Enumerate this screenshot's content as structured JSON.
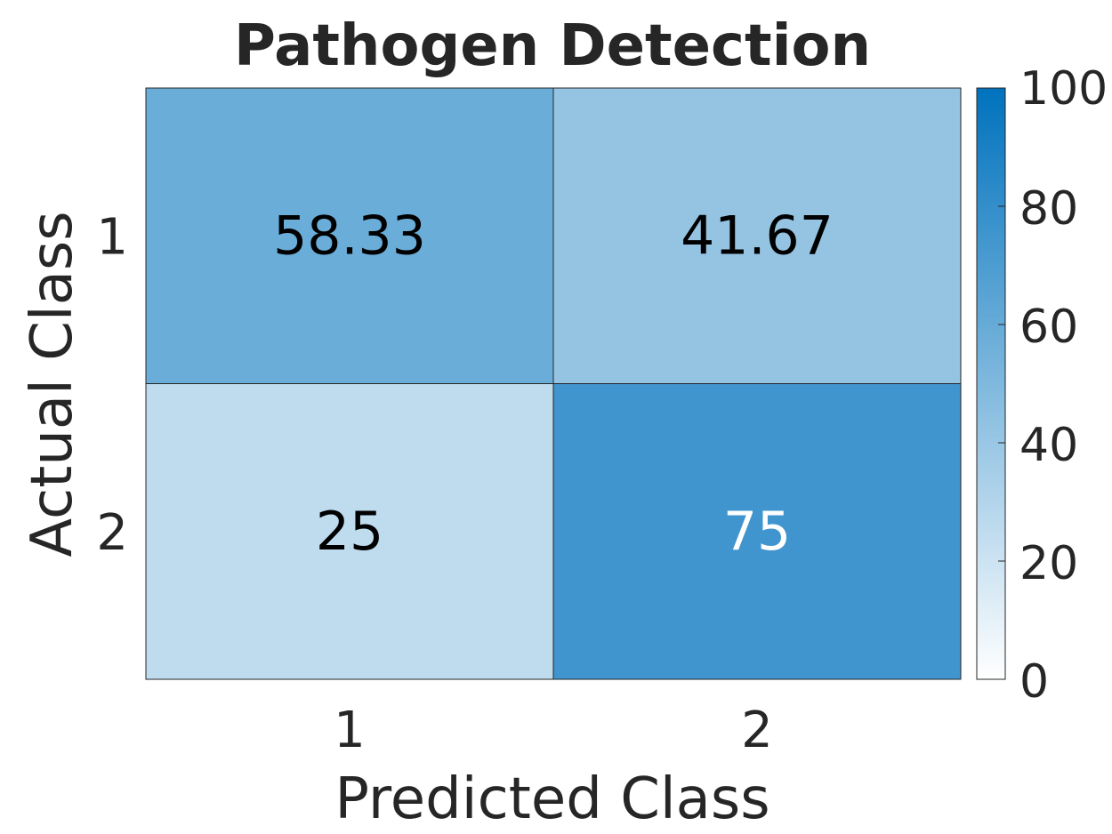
{
  "chart_data": {
    "type": "heatmap",
    "title": "Pathogen Detection",
    "xlabel": "Predicted Class",
    "ylabel": "Actual Class",
    "x_categories": [
      "1",
      "2"
    ],
    "y_categories": [
      "1",
      "2"
    ],
    "values": [
      [
        58.33,
        41.67
      ],
      [
        25,
        75
      ]
    ],
    "value_labels": [
      [
        "58.33",
        "41.67"
      ],
      [
        "25",
        "75"
      ]
    ],
    "colorbar": {
      "min": 0,
      "max": 100,
      "ticks": [
        0,
        20,
        40,
        60,
        80,
        100
      ],
      "tick_labels": [
        "0",
        "20",
        "40",
        "60",
        "80",
        "100"
      ],
      "color_low": "#ffffff",
      "color_high": "#0072bd"
    },
    "cell_text_colors": {
      "dark": "#000000",
      "light": "#ffffff"
    },
    "grid": false
  }
}
